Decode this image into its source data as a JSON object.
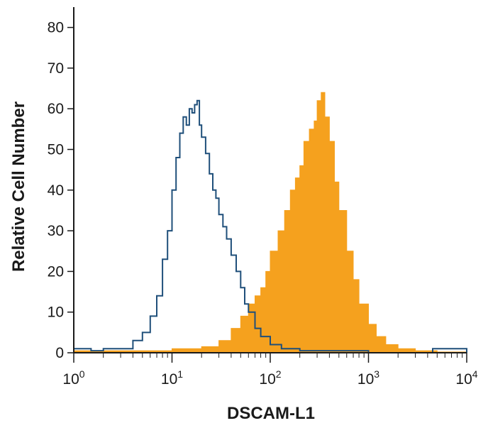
{
  "chart_data": {
    "type": "histogram",
    "title": "",
    "xlabel": "DSCAM-L1",
    "ylabel": "Relative Cell Number",
    "x_scale": "log",
    "xlim": [
      1,
      10000
    ],
    "ylim": [
      0,
      85
    ],
    "x_ticks": [
      {
        "value": 1,
        "base": "10",
        "exp": "0"
      },
      {
        "value": 10,
        "base": "10",
        "exp": "1"
      },
      {
        "value": 100,
        "base": "10",
        "exp": "2"
      },
      {
        "value": 1000,
        "base": "10",
        "exp": "3"
      },
      {
        "value": 10000,
        "base": "10",
        "exp": "4"
      }
    ],
    "y_ticks": [
      0,
      10,
      20,
      30,
      40,
      50,
      60,
      70,
      80
    ],
    "grid": false,
    "legend": "none",
    "series": [
      {
        "style": "outline",
        "color": "#1f4f7a",
        "x": [
          1,
          1.5,
          2,
          3,
          4,
          5,
          6,
          7,
          8,
          9,
          10,
          11,
          12,
          13,
          14,
          15,
          16,
          17,
          18,
          19,
          20,
          22,
          24,
          26,
          28,
          30,
          33,
          36,
          40,
          45,
          50,
          55,
          60,
          70,
          80,
          100,
          130,
          200,
          500,
          1000,
          4500,
          10000
        ],
        "y": [
          1,
          0.5,
          1,
          1,
          3,
          5,
          9,
          14,
          23,
          30,
          40,
          48,
          54,
          58,
          56,
          60,
          59,
          61,
          62,
          56,
          53,
          49,
          44,
          40,
          38,
          34,
          31,
          28,
          24,
          20,
          16,
          12,
          10,
          6,
          4,
          2,
          1,
          0.5,
          0.5,
          0,
          1,
          0
        ]
      },
      {
        "style": "filled",
        "color": "#f5a11e",
        "x": [
          1,
          5,
          10,
          15,
          20,
          30,
          40,
          50,
          60,
          70,
          80,
          90,
          100,
          120,
          140,
          160,
          180,
          200,
          220,
          250,
          280,
          300,
          330,
          360,
          400,
          450,
          500,
          600,
          700,
          800,
          1000,
          1200,
          1500,
          2000,
          3000,
          5000,
          10000
        ],
        "y": [
          0.5,
          0.5,
          1,
          1,
          1.5,
          3,
          6,
          9,
          12,
          14,
          16,
          20,
          25,
          30,
          35,
          40,
          43,
          46,
          52,
          55,
          57,
          62,
          64,
          58,
          52,
          42,
          35,
          25,
          18,
          12,
          7,
          4,
          2,
          1,
          0.5,
          0.2,
          0
        ]
      }
    ]
  }
}
